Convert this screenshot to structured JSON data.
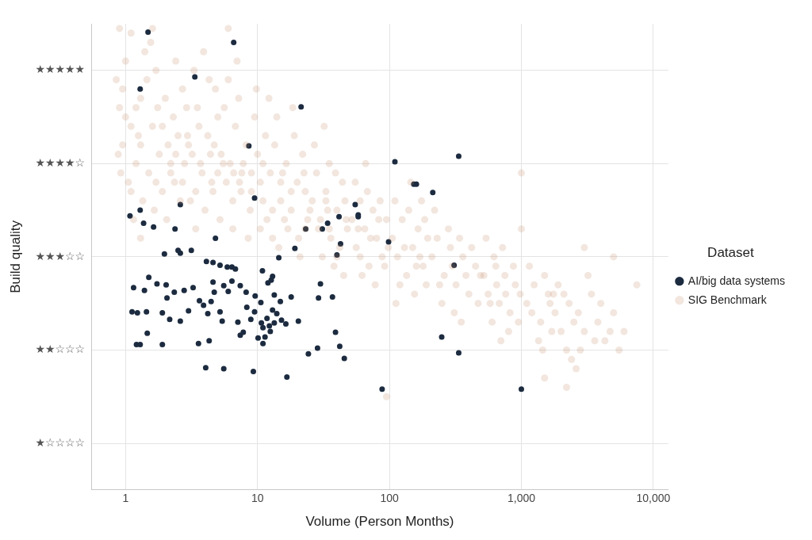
{
  "chart_data": {
    "type": "scatter",
    "x_label": "Volume (Person Months)",
    "y_label": "Build quality",
    "legend_title": "Dataset",
    "legend": "right",
    "log": "x",
    "grid": true,
    "xlim": [
      0.55,
      13000
    ],
    "xticks": [
      1,
      10,
      100,
      {
        "value": 1000,
        "label": "1,000"
      },
      {
        "value": 10000,
        "label": "10,000"
      }
    ],
    "ylim": [
      0.5,
      5.5
    ],
    "yticks": [
      {
        "value": 1,
        "label": "★☆☆☆☆"
      },
      {
        "value": 2,
        "label": "★★☆☆☆"
      },
      {
        "value": 3,
        "label": "★★★☆☆"
      },
      {
        "value": 4,
        "label": "★★★★☆"
      },
      {
        "value": 5,
        "label": "★★★★★"
      }
    ],
    "series": [
      {
        "name": "AI/big data systems",
        "color": "#1c2b3f",
        "marker": "circle",
        "x": [
          1.48,
          6.6,
          1.29,
          3.35,
          21.4,
          8.6,
          110,
          335,
          153,
          160,
          213,
          9.5,
          2.6,
          1.29,
          1.08,
          1.37,
          1.63,
          2.37,
          23.2,
          55,
          58,
          58,
          41.5,
          34,
          31,
          42.6,
          40,
          98.5,
          309,
          4.8,
          3.15,
          1.97,
          2.5,
          2.6,
          4.1,
          4.6,
          5.2,
          5.9,
          6.4,
          6.8,
          14.5,
          6.4,
          10.9,
          13,
          19.2,
          1.5,
          1.73,
          2.03,
          1.39,
          1.15,
          2.34,
          2.06,
          2.78,
          3.25,
          3.63,
          4.6,
          4.7,
          4.45,
          5.55,
          6.0,
          7.4,
          8.2,
          9.6,
          10.6,
          8.3,
          12,
          12.7,
          13.4,
          14.9,
          18,
          29,
          37,
          30,
          1.12,
          1.23,
          1.44,
          1.9,
          2.16,
          2.6,
          3.0,
          3.9,
          4.2,
          5.2,
          5.4,
          7.1,
          8.9,
          9.5,
          10.7,
          11.8,
          12.3,
          13.4,
          15.2,
          16.4,
          13,
          14,
          11,
          12.5,
          20.4,
          7.4,
          7.8,
          10.1,
          11,
          11.4,
          1.46,
          1.21,
          1.29,
          1.9,
          3.57,
          4.3,
          24.3,
          28.5,
          39,
          42,
          45.5,
          4.05,
          5.55,
          9.3,
          16.7,
          88,
          249,
          335,
          1000
        ],
        "values": [
          5.41,
          5.3,
          4.8,
          4.93,
          4.61,
          4.19,
          4.02,
          4.08,
          3.78,
          3.78,
          3.69,
          3.63,
          3.56,
          3.5,
          3.44,
          3.36,
          3.32,
          3.3,
          3.3,
          3.56,
          3.45,
          3.43,
          3.43,
          3.36,
          3.3,
          3.14,
          3.02,
          3.16,
          2.91,
          3.2,
          3.07,
          3.03,
          3.07,
          3.04,
          2.95,
          2.94,
          2.91,
          2.89,
          2.89,
          2.87,
          2.99,
          2.74,
          2.85,
          2.79,
          3.09,
          2.78,
          2.71,
          2.7,
          2.64,
          2.67,
          2.62,
          2.56,
          2.64,
          2.67,
          2.53,
          2.73,
          2.62,
          2.52,
          2.69,
          2.63,
          2.69,
          2.62,
          2.58,
          2.51,
          2.46,
          2.72,
          2.75,
          2.59,
          2.52,
          2.57,
          2.56,
          2.57,
          2.71,
          2.41,
          2.4,
          2.41,
          2.4,
          2.33,
          2.31,
          2.42,
          2.48,
          2.39,
          2.41,
          2.31,
          2.3,
          2.33,
          2.41,
          2.29,
          2.34,
          2.26,
          2.29,
          2.32,
          2.28,
          2.43,
          2.39,
          2.24,
          2.2,
          2.31,
          2.16,
          2.19,
          2.13,
          2.07,
          2.14,
          2.18,
          2.06,
          2.06,
          2.06,
          2.07,
          2.1,
          1.96,
          2.02,
          2.19,
          2.04,
          1.91,
          1.81,
          1.8,
          1.77,
          1.71,
          1.58,
          2.14,
          1.97,
          1.58
        ]
      },
      {
        "name": "SIG Benchmark",
        "color": "#c0805a",
        "marker": "circle",
        "x": [
          0.9,
          0.95,
          1.0,
          1.05,
          1.1,
          0.85,
          1.2,
          1.3,
          1.15,
          0.92,
          1.4,
          1.25,
          1.35,
          1.0,
          1.1,
          0.88,
          1.45,
          1.3,
          0.95,
          1.2,
          1.6,
          1.8,
          2.0,
          2.2,
          2.5,
          1.7,
          2.8,
          1.9,
          2.3,
          2.6,
          1.55,
          2.1,
          2.4,
          2.9,
          1.65,
          2.7,
          1.75,
          2.05,
          2.35,
          2.95,
          3.2,
          3.5,
          3.8,
          4.2,
          4.6,
          5.0,
          5.5,
          3.3,
          4.0,
          4.8,
          5.8,
          3.6,
          4.4,
          5.2,
          3.1,
          3.9,
          4.7,
          5.6,
          3.4,
          4.3,
          6.2,
          6.8,
          7.5,
          8.2,
          9.0,
          10,
          11,
          6.5,
          7.2,
          8.8,
          9.5,
          10.5,
          11.5,
          6.0,
          7.8,
          8.5,
          9.8,
          11.8,
          6.6,
          7.0,
          12.5,
          13.5,
          15,
          16.5,
          18,
          20,
          22,
          24,
          13,
          14,
          17,
          19,
          21,
          23,
          12.2,
          15.5,
          18.5,
          20.5,
          14.5,
          22.5,
          26,
          28,
          30,
          33,
          36,
          40,
          44,
          48,
          27,
          31,
          35,
          38,
          42,
          46,
          29,
          34,
          39,
          45,
          32,
          47,
          52,
          56,
          60,
          65,
          70,
          75,
          80,
          88,
          95,
          55,
          62,
          68,
          78,
          85,
          92,
          58,
          72,
          98,
          66,
          83,
          105,
          115,
          125,
          135,
          150,
          165,
          180,
          195,
          110,
          120,
          140,
          155,
          170,
          190,
          130,
          145,
          160,
          185,
          112,
          175,
          210,
          230,
          260,
          290,
          320,
          360,
          400,
          450,
          220,
          250,
          280,
          310,
          340,
          380,
          420,
          470,
          240,
          300,
          350,
          490,
          520,
          560,
          620,
          680,
          750,
          820,
          900,
          980,
          540,
          600,
          650,
          720,
          800,
          870,
          950,
          580,
          700,
          1000,
          760,
          640,
          1100,
          1250,
          1400,
          1600,
          1800,
          2000,
          2300,
          1150,
          1350,
          1500,
          1700,
          1900,
          2200,
          2500,
          1200,
          1650,
          2100,
          1450,
          1750,
          2400,
          2700,
          3000,
          3400,
          3800,
          4300,
          5000,
          6000,
          7500,
          2800,
          3200,
          4000,
          4700,
          5500,
          2600,
          3600,
          0.9,
          1.6,
          6.0,
          5000,
          3000,
          2200,
          1500,
          95,
          1000,
          1.5,
          2.2,
          3.0,
          4.5,
          6.5,
          9.0,
          13,
          18,
          25,
          35,
          1.3,
          1.9,
          2.7,
          3.7,
          5.3,
          7.6,
          11,
          16,
          23,
          33,
          1.1,
          1.7,
          2.4,
          3.4,
          5.0,
          7.3,
          10.5,
          15,
          40,
          60
        ],
        "values": [
          4.6,
          4.2,
          5.1,
          3.8,
          4.4,
          4.9,
          4.0,
          4.7,
          3.4,
          3.9,
          5.2,
          4.3,
          3.6,
          4.5,
          5.4,
          4.1,
          4.9,
          3.2,
          4.8,
          4.6,
          4.4,
          4.1,
          4.7,
          3.9,
          4.3,
          5.0,
          4.0,
          3.7,
          4.5,
          3.6,
          5.3,
          4.2,
          5.1,
          4.6,
          3.5,
          4.8,
          4.6,
          3.4,
          3.8,
          4.3,
          4.1,
          4.6,
          3.9,
          4.3,
          3.7,
          4.5,
          4.0,
          5.0,
          3.5,
          4.8,
          3.8,
          4.4,
          4.1,
          3.4,
          3.6,
          5.2,
          4.2,
          4.6,
          3.3,
          4.9,
          4.0,
          4.4,
          3.7,
          4.2,
          3.9,
          4.1,
          3.6,
          3.3,
          4.7,
          3.5,
          4.5,
          3.8,
          4.3,
          4.9,
          4.0,
          3.2,
          4.8,
          3.4,
          3.9,
          5.1,
          3.9,
          4.2,
          3.6,
          4.0,
          3.5,
          3.8,
          4.1,
          3.4,
          3.2,
          4.5,
          3.3,
          4.3,
          3.0,
          3.7,
          4.7,
          3.9,
          4.6,
          3.2,
          3.1,
          3.9,
          3.6,
          3.9,
          3.4,
          3.7,
          3.2,
          3.5,
          3.8,
          3.3,
          4.2,
          3.0,
          4.0,
          2.9,
          3.1,
          3.6,
          3.3,
          3.5,
          3.9,
          2.8,
          4.4,
          3.4,
          3.4,
          3.1,
          3.6,
          3.3,
          2.9,
          3.5,
          3.2,
          3.0,
          3.4,
          3.8,
          2.8,
          3.7,
          2.7,
          3.6,
          2.9,
          3.3,
          3.2,
          3.1,
          4.0,
          3.4,
          3.2,
          3.0,
          3.4,
          2.8,
          3.1,
          3.3,
          2.9,
          3.2,
          3.6,
          2.7,
          3.5,
          2.6,
          3.0,
          2.7,
          3.1,
          3.8,
          2.9,
          3.4,
          2.5,
          3.6,
          3.0,
          3.2,
          2.8,
          3.1,
          2.7,
          3.0,
          2.6,
          2.9,
          3.5,
          2.5,
          3.3,
          2.4,
          3.2,
          2.8,
          3.1,
          2.5,
          2.7,
          2.9,
          2.3,
          2.8,
          2.8,
          2.6,
          3.0,
          2.5,
          2.8,
          2.4,
          2.7,
          2.6,
          3.2,
          2.3,
          2.7,
          3.1,
          2.2,
          2.9,
          2.3,
          2.5,
          2.1,
          3.3,
          2.6,
          2.9,
          2.5,
          2.7,
          2.3,
          2.6,
          2.4,
          2.2,
          2.5,
          2.9,
          2.1,
          2.8,
          2.2,
          2.7,
          2.0,
          2.3,
          2.4,
          2.5,
          2.6,
          2.0,
          2.6,
          1.9,
          2.4,
          2.2,
          2.6,
          2.3,
          2.1,
          2.4,
          2.2,
          2.7,
          2.0,
          2.8,
          2.5,
          2.2,
          2.0,
          1.8,
          2.1,
          5.45,
          5.45,
          5.45,
          3.0,
          3.1,
          1.6,
          1.7,
          1.5,
          3.9,
          3.9,
          4.0,
          4.2,
          3.8,
          3.6,
          3.7,
          3.5,
          3.7,
          3.5,
          3.3,
          4.2,
          4.4,
          3.8,
          4.0,
          4.1,
          3.9,
          4.0,
          3.4,
          3.3,
          3.6,
          3.7,
          3.8,
          4.1,
          3.7,
          3.9,
          3.8,
          3.3,
          3.8,
          3.0,
          3.0
        ]
      }
    ]
  }
}
